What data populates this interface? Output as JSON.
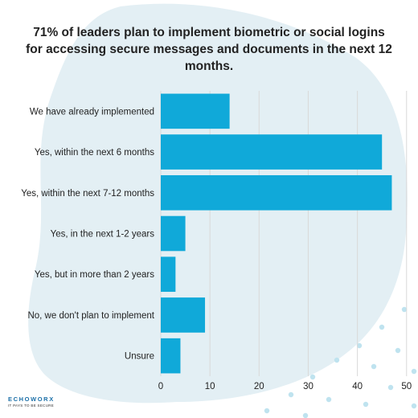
{
  "title": {
    "percent": "71%",
    "part1": " of leaders plan to implement biometric or social logins for accessing secure messages and documents in the next ",
    "emphasis": "12 months."
  },
  "brand": {
    "name": "ECHOWORX",
    "tagline": "IT PAYS TO BE SECURE"
  },
  "colors": {
    "bar": "#10a9d9",
    "blob": "#e3eff4",
    "dots": "#bfe3ef",
    "grid": "#d9d9d9"
  },
  "chart_data": {
    "type": "bar",
    "orientation": "horizontal",
    "categories": [
      "We have already implemented",
      "Yes, within the next 6 months",
      "Yes, within the next 7-12 months",
      "Yes, in the next 1-2 years",
      "Yes, but in more than 2 years",
      "No, we don't plan to implement",
      "Unsure"
    ],
    "values": [
      14,
      45,
      47,
      5,
      3,
      9,
      4
    ],
    "xlim": [
      0,
      52
    ],
    "xticks": [
      0,
      10,
      20,
      30,
      40,
      50
    ],
    "grid": true,
    "legend": "none"
  }
}
